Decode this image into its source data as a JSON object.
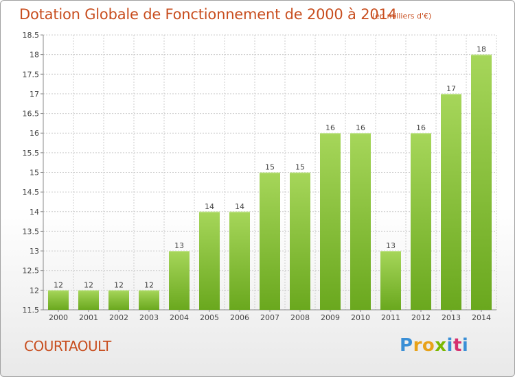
{
  "title": "Dotation Globale de Fonctionnement de 2000 à 2014",
  "subtitle": "(en milliers d'€)",
  "commune": "COURTAOULT",
  "brand": {
    "letters": [
      "P",
      "r",
      "o",
      "x",
      "i",
      "t",
      "i"
    ],
    "colors": [
      "#3a8fd6",
      "#e8a21a",
      "#e8a21a",
      "#7ab800",
      "#3a8fd6",
      "#d62f6e",
      "#3a8fd6"
    ]
  },
  "colors": {
    "title": "#c84e1f",
    "bar_light": "#a6d65a",
    "bar_dark": "#6aa81e",
    "grid": "#cccccc"
  },
  "chart_data": {
    "type": "bar",
    "categories": [
      "2000",
      "2001",
      "2002",
      "2003",
      "2004",
      "2005",
      "2006",
      "2007",
      "2008",
      "2009",
      "2010",
      "2011",
      "2012",
      "2013",
      "2014"
    ],
    "values": [
      12,
      12,
      12,
      12,
      13,
      14,
      14,
      15,
      15,
      16,
      16,
      13,
      16,
      17,
      18
    ],
    "data_labels": [
      "12",
      "12",
      "12",
      "12",
      "13",
      "14",
      "14",
      "15",
      "15",
      "16",
      "16",
      "13",
      "16",
      "17",
      "18"
    ],
    "ylim": [
      11.5,
      18.5
    ],
    "yticks": [
      11.5,
      12,
      12.5,
      13,
      13.5,
      14,
      14.5,
      15,
      15.5,
      16,
      16.5,
      17,
      17.5,
      18,
      18.5
    ],
    "ytick_labels": [
      "11.5",
      "12",
      "12.5",
      "13",
      "13.5",
      "14",
      "14.5",
      "15",
      "15.5",
      "16",
      "16.5",
      "17",
      "17.5",
      "18",
      "18.5"
    ],
    "grid": true,
    "xlabel": "",
    "ylabel": ""
  }
}
